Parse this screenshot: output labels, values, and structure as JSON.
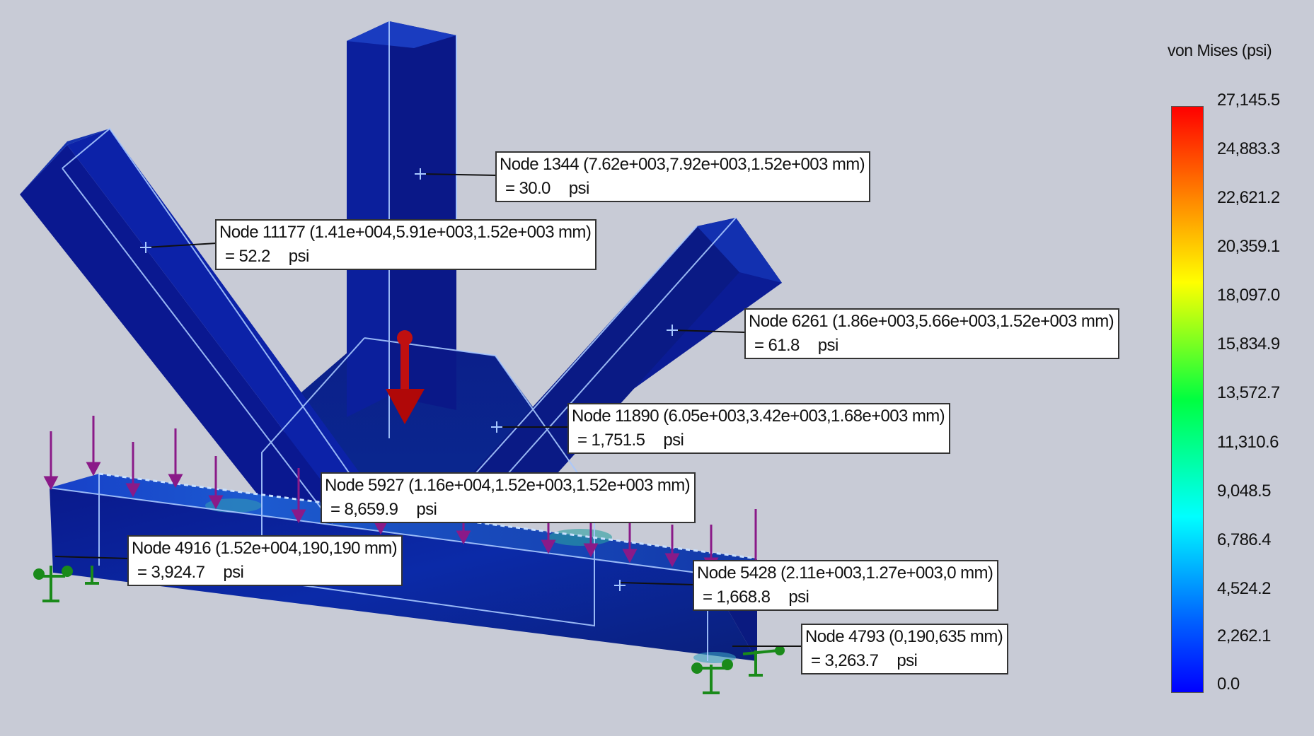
{
  "legend": {
    "title": "von Mises (psi)",
    "labels": [
      "27,145.5",
      "24,883.3",
      "22,621.2",
      "20,359.1",
      "18,097.0",
      "15,834.9",
      "13,572.7",
      "11,310.6",
      "9,048.5",
      "6,786.4",
      "4,524.2",
      "2,262.1",
      "0.0"
    ],
    "colors": {
      "max": "#ff0000",
      "min": "#0000ff"
    }
  },
  "probes": [
    {
      "id": "n1344",
      "node": "Node 1344 (7.62e+003,7.92e+003,1.52e+003 mm)",
      "value": "= 30.0",
      "unit": "psi"
    },
    {
      "id": "n11177",
      "node": "Node 11177 (1.41e+004,5.91e+003,1.52e+003 mm)",
      "value": "= 52.2",
      "unit": "psi"
    },
    {
      "id": "n6261",
      "node": "Node 6261 (1.86e+003,5.66e+003,1.52e+003 mm)",
      "value": "= 61.8",
      "unit": "psi"
    },
    {
      "id": "n11890",
      "node": "Node 11890 (6.05e+003,3.42e+003,1.68e+003 mm)",
      "value": "= 1,751.5",
      "unit": "psi"
    },
    {
      "id": "n5927",
      "node": "Node 5927 (1.16e+004,1.52e+003,1.52e+003 mm)",
      "value": "= 8,659.9",
      "unit": "psi"
    },
    {
      "id": "n4916",
      "node": "Node 4916 (1.52e+004,190,190 mm)",
      "value": "= 3,924.7",
      "unit": "psi"
    },
    {
      "id": "n5428",
      "node": "Node 5428 (2.11e+003,1.27e+003,0 mm)",
      "value": "= 1,668.8",
      "unit": "psi"
    },
    {
      "id": "n4793",
      "node": "Node 4793 (0,190,635 mm)",
      "value": "= 3,263.7",
      "unit": "psi"
    }
  ]
}
